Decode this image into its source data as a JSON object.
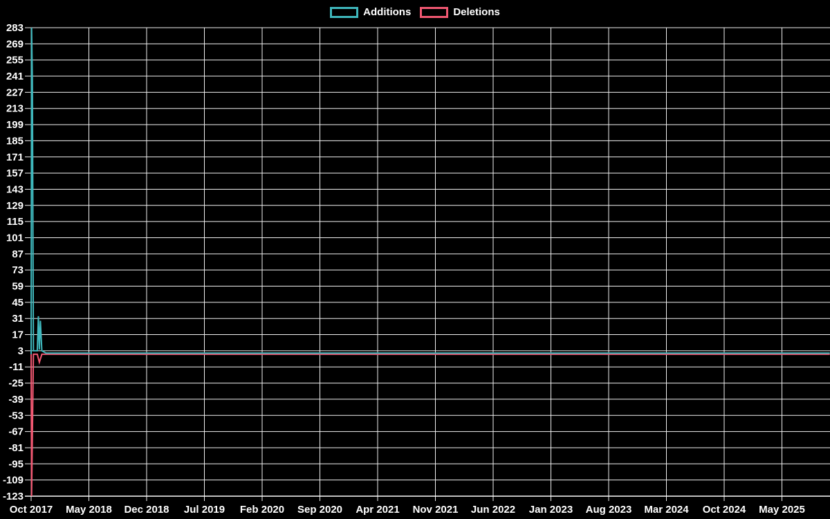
{
  "legend": {
    "additions_label": "Additions",
    "deletions_label": "Deletions"
  },
  "colors": {
    "additions": "#3fb8bd",
    "deletions": "#f25872",
    "grid": "#f2f2f2",
    "axis": "#ffffff",
    "text": "#ffffff",
    "background": "#000000"
  },
  "chart_data": {
    "type": "line",
    "title": "",
    "xlabel": "",
    "ylabel": "",
    "grid": true,
    "legend_position": "top-center",
    "x_axis": {
      "tick_labels": [
        "Oct 2017",
        "May 2018",
        "Dec 2018",
        "Jul 2019",
        "Feb 2020",
        "Sep 2020",
        "Apr 2021",
        "Nov 2021",
        "Jun 2022",
        "Jan 2023",
        "Aug 2023",
        "Mar 2024",
        "Oct 2024",
        "May 2025"
      ],
      "tick_month_offsets": [
        0,
        7,
        14,
        21,
        28,
        35,
        42,
        49,
        56,
        63,
        70,
        77,
        84,
        91
      ],
      "months_rendered_span": 96.8
    },
    "y_axis": {
      "max": 283,
      "min": -123,
      "step": 14,
      "tick_labels": [
        283,
        269,
        255,
        241,
        227,
        213,
        199,
        185,
        171,
        157,
        143,
        129,
        115,
        101,
        87,
        73,
        59,
        45,
        31,
        17,
        3,
        -11,
        -25,
        -39,
        -53,
        -67,
        -81,
        -95,
        -109,
        -123
      ]
    },
    "series": [
      {
        "name": "Additions",
        "color": "#3fb8bd",
        "x_unit": "months_after_oct_2017",
        "points": [
          [
            0,
            0
          ],
          [
            0.06,
            283
          ],
          [
            0.15,
            237
          ],
          [
            0.28,
            3
          ],
          [
            0.75,
            3
          ],
          [
            0.88,
            33
          ],
          [
            1.0,
            4
          ],
          [
            1.12,
            29
          ],
          [
            1.3,
            3
          ],
          [
            1.8,
            1
          ],
          [
            96.8,
            1
          ]
        ]
      },
      {
        "name": "Deletions",
        "color": "#f25872",
        "x_unit": "months_after_oct_2017",
        "points": [
          [
            0,
            0
          ],
          [
            0.06,
            -123
          ],
          [
            0.28,
            0
          ],
          [
            0.75,
            0
          ],
          [
            1.0,
            -7
          ],
          [
            1.3,
            0
          ],
          [
            1.8,
            0
          ],
          [
            96.8,
            0
          ]
        ]
      }
    ]
  }
}
